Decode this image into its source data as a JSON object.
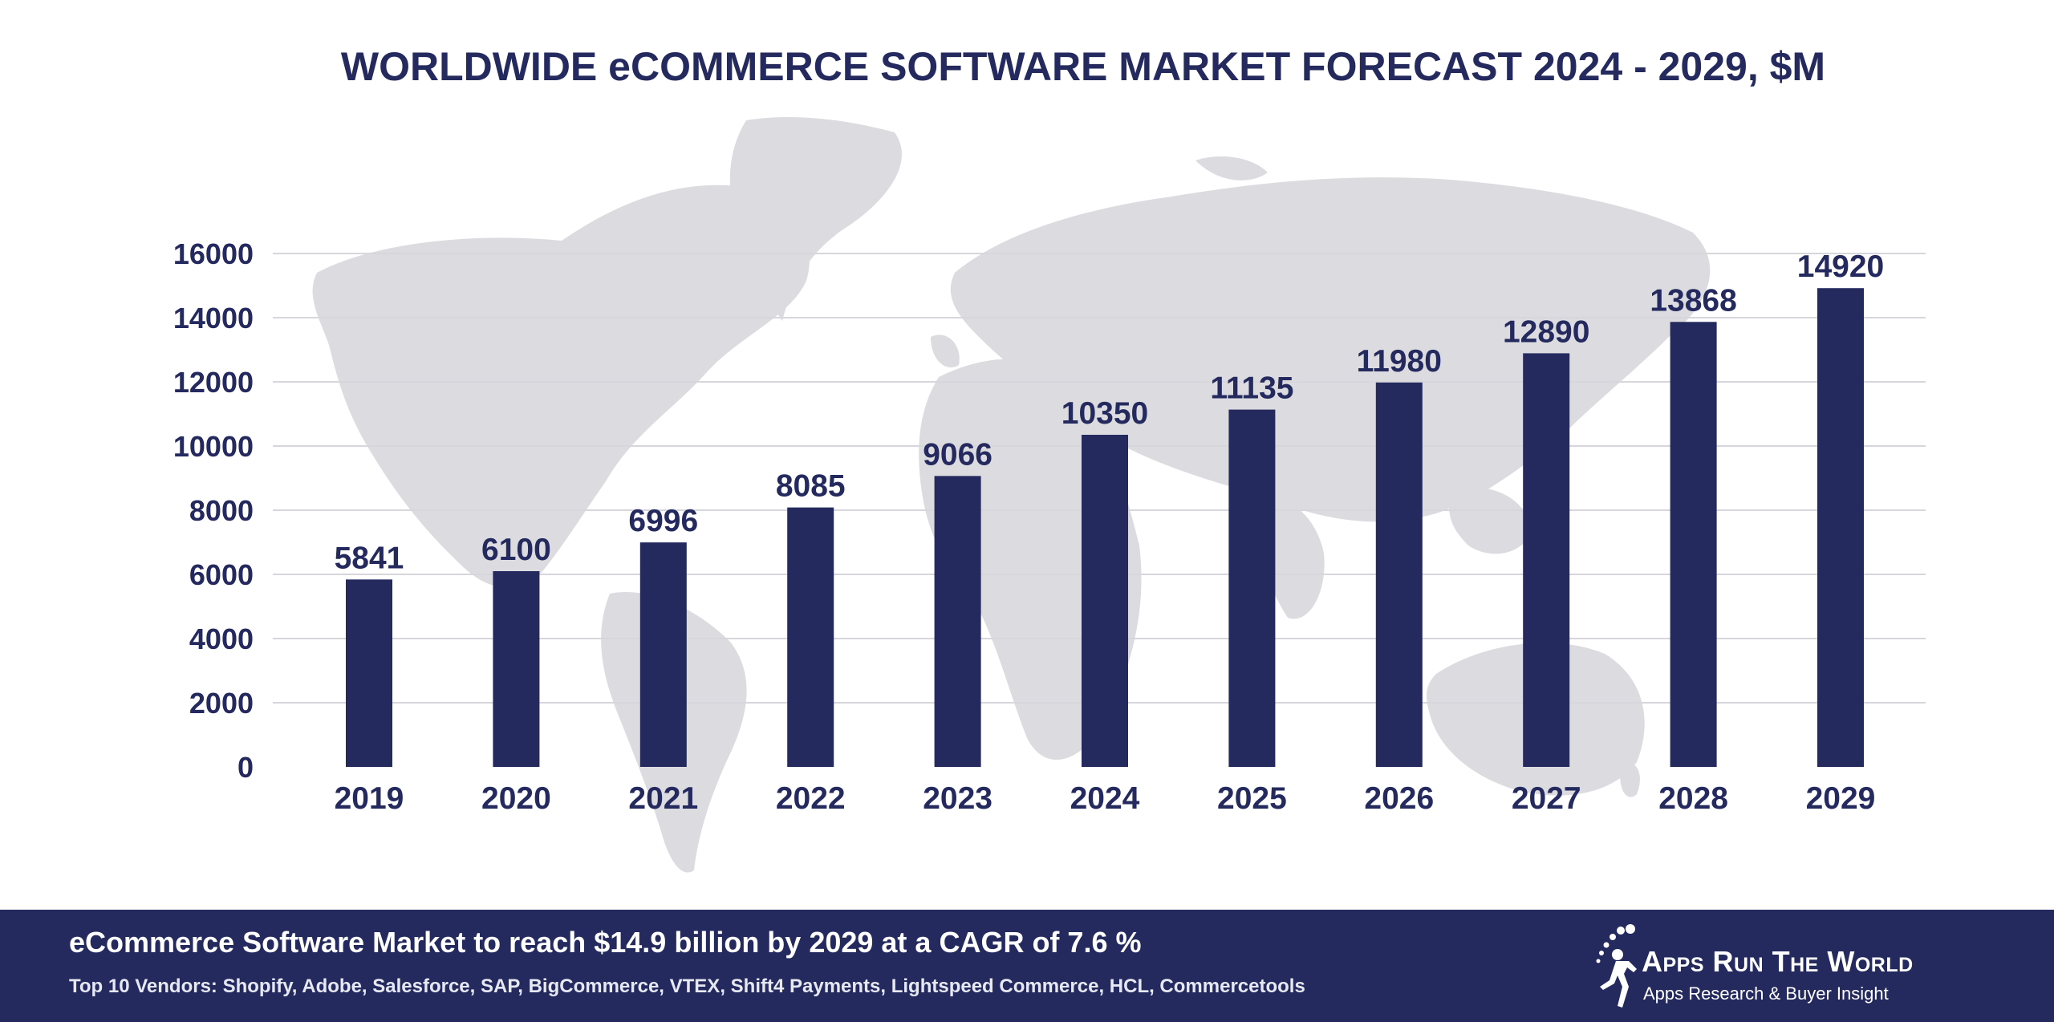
{
  "chart_data": {
    "type": "bar",
    "title": "WORLDWIDE eCOMMERCE SOFTWARE MARKET FORECAST 2024 - 2029, $M",
    "categories": [
      "2019",
      "2020",
      "2021",
      "2022",
      "2023",
      "2024",
      "2025",
      "2026",
      "2027",
      "2028",
      "2029"
    ],
    "values": [
      5841,
      6100,
      6996,
      8085,
      9066,
      10350,
      11135,
      11980,
      12890,
      13868,
      14920
    ],
    "yticks": [
      0,
      2000,
      4000,
      6000,
      8000,
      10000,
      12000,
      14000,
      16000
    ],
    "ylim": [
      0,
      16000
    ],
    "xlabel": "",
    "ylabel": "",
    "grid": true,
    "bar_color": "#252a5e",
    "background_graphic": "world-map"
  },
  "footer": {
    "headline": "eCommerce Software Market to reach $14.9 billion by 2029 at a CAGR of 7.6 %",
    "vendors": "Top 10 Vendors: Shopify, Adobe, Salesforce, SAP, BigCommerce, VTEX, Shift4 Payments, Lightspeed Commerce, HCL, Commercetools",
    "brand_name": "Apps Run The World",
    "brand_tagline": "Apps Research & Buyer Insight"
  },
  "colors": {
    "primary": "#252a5e",
    "gridline": "#d6d6dc",
    "map": "#dcdce0"
  }
}
